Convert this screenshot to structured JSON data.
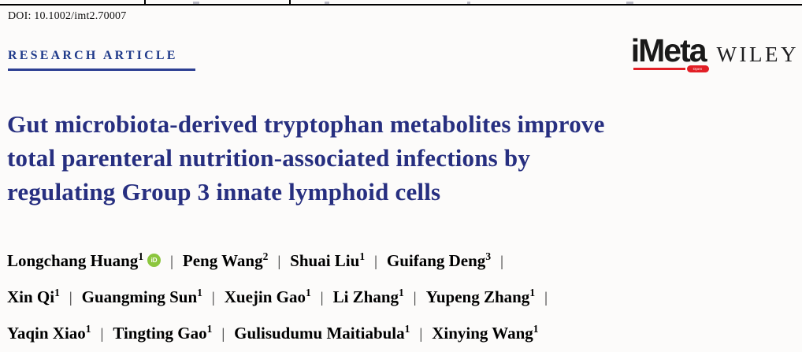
{
  "header": {
    "doi": "DOI: 10.1002/imt2.70007",
    "article_type": "RESEARCH ARTICLE"
  },
  "branding": {
    "journal_name": "iMeta",
    "journal_badge": "Open Access",
    "publisher": "WILEY"
  },
  "title": {
    "lines": [
      "Gut microbiota-derived tryptophan metabolites improve",
      "total parenteral nutrition-associated infections by",
      "regulating Group 3 innate lymphoid cells"
    ]
  },
  "authors": {
    "separator": "|",
    "list": [
      {
        "name": "Longchang Huang",
        "sup": "1",
        "orcid": true
      },
      {
        "name": "Peng Wang",
        "sup": "2"
      },
      {
        "name": "Shuai Liu",
        "sup": "1"
      },
      {
        "name": "Guifang Deng",
        "sup": "3",
        "break_after": true
      },
      {
        "name": "Xin Qi",
        "sup": "1"
      },
      {
        "name": "Guangming Sun",
        "sup": "1"
      },
      {
        "name": "Xuejin Gao",
        "sup": "1"
      },
      {
        "name": "Li Zhang",
        "sup": "1"
      },
      {
        "name": "Yupeng Zhang",
        "sup": "1",
        "break_after": true
      },
      {
        "name": "Yaqin Xiao",
        "sup": "1"
      },
      {
        "name": "Tingting Gao",
        "sup": "1"
      },
      {
        "name": "Gulisudumu Maitiabula",
        "sup": "1"
      },
      {
        "name": "Xinying Wang",
        "sup": "1"
      }
    ]
  },
  "colors": {
    "title_navy": "#272f80",
    "heading_navy": "#1f3a8a",
    "rule_blue": "#2c3f92",
    "logo_red": "#e21f26",
    "orcid_green": "#8cc63e"
  }
}
